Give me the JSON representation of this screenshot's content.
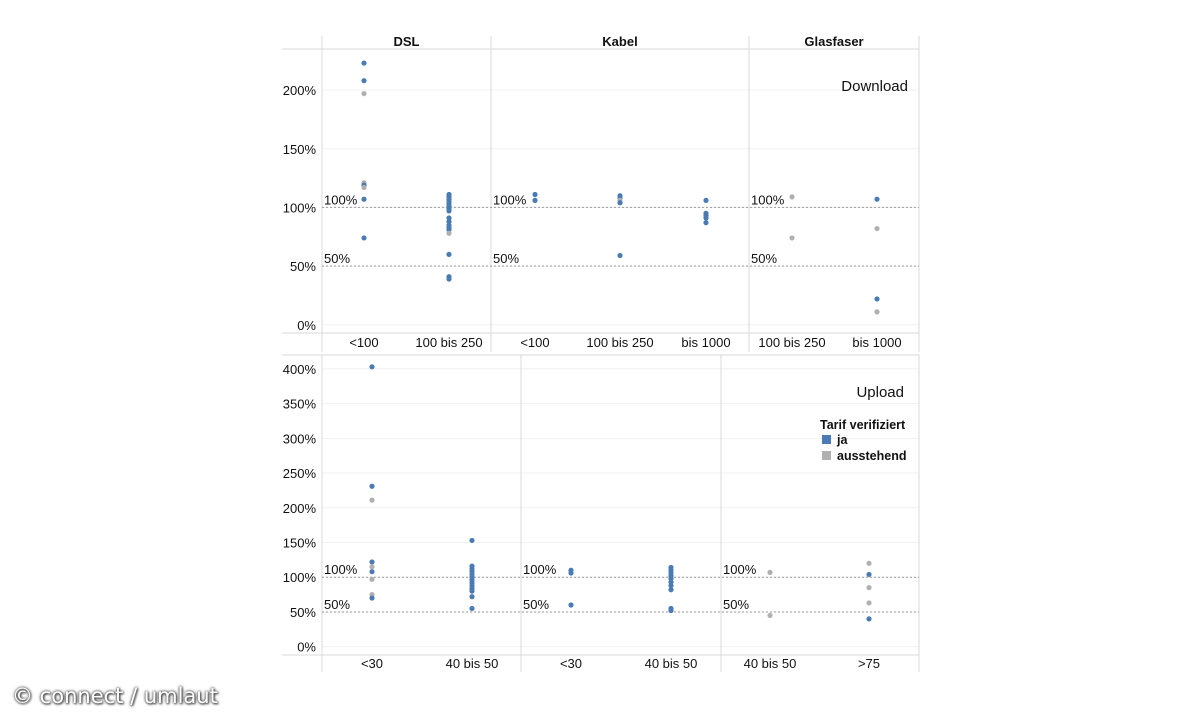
{
  "credit": "© connect / umlaut",
  "colors": {
    "ja": "#4a7bb5",
    "ausstehend": "#b0b0b0",
    "grid": "#d9d9d9",
    "refline": "#9a9a9a"
  },
  "chart_data": [
    {
      "type": "scatter",
      "title": "Download",
      "columns": [
        "DSL",
        "Kabel",
        "Glasfaser"
      ],
      "yticks": [
        "0%",
        "50%",
        "100%",
        "150%",
        "200%"
      ],
      "ytick_values": [
        0,
        50,
        100,
        150,
        200
      ],
      "ylim": [
        -7,
        235
      ],
      "ref_lines": [
        {
          "value": 100,
          "label": "100%"
        },
        {
          "value": 50,
          "label": "50%"
        }
      ],
      "groups": [
        {
          "column": "DSL",
          "category": "<100",
          "points": [
            {
              "y": 223,
              "s": "ja"
            },
            {
              "y": 208,
              "s": "ja"
            },
            {
              "y": 197,
              "s": "ausstehend"
            },
            {
              "y": 121,
              "s": "ausstehend"
            },
            {
              "y": 119,
              "s": "ja"
            },
            {
              "y": 117,
              "s": "ausstehend"
            },
            {
              "y": 107,
              "s": "ja"
            },
            {
              "y": 74,
              "s": "ja"
            }
          ]
        },
        {
          "column": "DSL",
          "category": "100 bis 250",
          "points": [
            {
              "y": 111,
              "s": "ja"
            },
            {
              "y": 109,
              "s": "ja"
            },
            {
              "y": 107,
              "s": "ja"
            },
            {
              "y": 105,
              "s": "ja"
            },
            {
              "y": 103,
              "s": "ja"
            },
            {
              "y": 101,
              "s": "ja"
            },
            {
              "y": 99,
              "s": "ja"
            },
            {
              "y": 97,
              "s": "ja"
            },
            {
              "y": 91,
              "s": "ja"
            },
            {
              "y": 88,
              "s": "ja"
            },
            {
              "y": 85,
              "s": "ja"
            },
            {
              "y": 83,
              "s": "ja"
            },
            {
              "y": 81,
              "s": "ja"
            },
            {
              "y": 78,
              "s": "ausstehend"
            },
            {
              "y": 60,
              "s": "ja"
            },
            {
              "y": 41,
              "s": "ja"
            },
            {
              "y": 39,
              "s": "ja"
            }
          ]
        },
        {
          "column": "Kabel",
          "category": "<100",
          "points": [
            {
              "y": 111,
              "s": "ja"
            },
            {
              "y": 106,
              "s": "ja"
            }
          ]
        },
        {
          "column": "Kabel",
          "category": "100 bis 250",
          "points": [
            {
              "y": 110,
              "s": "ja"
            },
            {
              "y": 108,
              "s": "ja"
            },
            {
              "y": 106,
              "s": "ausstehend"
            },
            {
              "y": 104,
              "s": "ja"
            },
            {
              "y": 59,
              "s": "ja"
            }
          ]
        },
        {
          "column": "Kabel",
          "category": "bis 1000",
          "points": [
            {
              "y": 106,
              "s": "ja"
            },
            {
              "y": 95,
              "s": "ja"
            },
            {
              "y": 93,
              "s": "ja"
            },
            {
              "y": 91,
              "s": "ja"
            },
            {
              "y": 87,
              "s": "ja"
            }
          ]
        },
        {
          "column": "Glasfaser",
          "category": "100 bis 250",
          "points": [
            {
              "y": 109,
              "s": "ausstehend"
            },
            {
              "y": 74,
              "s": "ausstehend"
            }
          ]
        },
        {
          "column": "Glasfaser",
          "category": "bis 1000",
          "points": [
            {
              "y": 107,
              "s": "ja"
            },
            {
              "y": 82,
              "s": "ausstehend"
            },
            {
              "y": 22,
              "s": "ja"
            },
            {
              "y": 11,
              "s": "ausstehend"
            }
          ]
        }
      ]
    },
    {
      "type": "scatter",
      "title": "Upload",
      "columns": [
        "DSL",
        "Kabel",
        "Glasfaser"
      ],
      "yticks": [
        "0%",
        "50%",
        "100%",
        "150%",
        "200%",
        "250%",
        "300%",
        "350%",
        "400%"
      ],
      "ytick_values": [
        0,
        50,
        100,
        150,
        200,
        250,
        300,
        350,
        400
      ],
      "ylim": [
        -12,
        420
      ],
      "ref_lines": [
        {
          "value": 100,
          "label": "100%"
        },
        {
          "value": 50,
          "label": "50%"
        }
      ],
      "legend": {
        "title": "Tarif verifiziert",
        "items": [
          {
            "label": "ja",
            "key": "ja"
          },
          {
            "label": "ausstehend",
            "key": "ausstehend"
          }
        ],
        "position": "top-right"
      },
      "groups": [
        {
          "column": "DSL",
          "category": "<30",
          "points": [
            {
              "y": 403,
              "s": "ja"
            },
            {
              "y": 231,
              "s": "ja"
            },
            {
              "y": 211,
              "s": "ausstehend"
            },
            {
              "y": 122,
              "s": "ja"
            },
            {
              "y": 115,
              "s": "ausstehend"
            },
            {
              "y": 108,
              "s": "ja"
            },
            {
              "y": 97,
              "s": "ausstehend"
            },
            {
              "y": 75,
              "s": "ausstehend"
            },
            {
              "y": 70,
              "s": "ja"
            }
          ]
        },
        {
          "column": "DSL",
          "category": "40 bis 50",
          "points": [
            {
              "y": 153,
              "s": "ja"
            },
            {
              "y": 116,
              "s": "ja"
            },
            {
              "y": 112,
              "s": "ja"
            },
            {
              "y": 108,
              "s": "ja"
            },
            {
              "y": 104,
              "s": "ja"
            },
            {
              "y": 100,
              "s": "ja"
            },
            {
              "y": 96,
              "s": "ja"
            },
            {
              "y": 92,
              "s": "ja"
            },
            {
              "y": 88,
              "s": "ja"
            },
            {
              "y": 84,
              "s": "ja"
            },
            {
              "y": 80,
              "s": "ja"
            },
            {
              "y": 72,
              "s": "ja"
            },
            {
              "y": 55,
              "s": "ja"
            }
          ]
        },
        {
          "column": "Kabel",
          "category": "<30",
          "points": [
            {
              "y": 110,
              "s": "ja"
            },
            {
              "y": 106,
              "s": "ja"
            },
            {
              "y": 60,
              "s": "ja"
            }
          ]
        },
        {
          "column": "Kabel",
          "category": "40 bis 50",
          "points": [
            {
              "y": 114,
              "s": "ja"
            },
            {
              "y": 110,
              "s": "ja"
            },
            {
              "y": 106,
              "s": "ja"
            },
            {
              "y": 102,
              "s": "ja"
            },
            {
              "y": 98,
              "s": "ja"
            },
            {
              "y": 93,
              "s": "ja"
            },
            {
              "y": 88,
              "s": "ja"
            },
            {
              "y": 82,
              "s": "ja"
            },
            {
              "y": 55,
              "s": "ja"
            },
            {
              "y": 52,
              "s": "ja"
            }
          ]
        },
        {
          "column": "Glasfaser",
          "category": "40 bis 50",
          "points": [
            {
              "y": 107,
              "s": "ausstehend"
            },
            {
              "y": 45,
              "s": "ausstehend"
            }
          ]
        },
        {
          "column": "Glasfaser",
          "category": ">75",
          "points": [
            {
              "y": 120,
              "s": "ausstehend"
            },
            {
              "y": 104,
              "s": "ja"
            },
            {
              "y": 85,
              "s": "ausstehend"
            },
            {
              "y": 63,
              "s": "ausstehend"
            },
            {
              "y": 40,
              "s": "ja"
            }
          ]
        }
      ]
    }
  ]
}
